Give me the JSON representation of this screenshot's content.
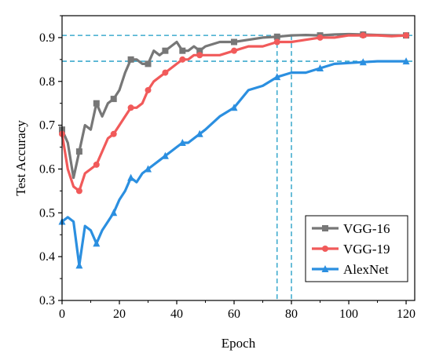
{
  "chart_data": {
    "type": "line",
    "title": "",
    "xlabel": "Epoch",
    "ylabel": "Test Accuracy",
    "xlim": [
      0,
      123
    ],
    "ylim": [
      0.3,
      0.95
    ],
    "xticks": [
      "0",
      "20",
      "40",
      "60",
      "80",
      "100",
      "120"
    ],
    "yticks": [
      "0.3",
      "0.4",
      "0.5",
      "0.6",
      "0.7",
      "0.8",
      "0.9"
    ],
    "grid": false,
    "legend_position": "bottom-right",
    "reference_lines": {
      "horizontal": [
        0.905,
        0.846
      ],
      "vertical": [
        75,
        80
      ],
      "color": "#1a9bc4"
    },
    "series": [
      {
        "name": "VGG-16",
        "color": "#777777",
        "marker": "square",
        "x": [
          0,
          2,
          4,
          6,
          8,
          10,
          12,
          14,
          16,
          18,
          20,
          22,
          24,
          26,
          28,
          30,
          32,
          34,
          36,
          38,
          40,
          42,
          44,
          46,
          48,
          50,
          55,
          60,
          65,
          70,
          75,
          80,
          85,
          90,
          95,
          100,
          105,
          110,
          115,
          120
        ],
        "y": [
          0.69,
          0.66,
          0.58,
          0.64,
          0.7,
          0.69,
          0.75,
          0.72,
          0.75,
          0.76,
          0.78,
          0.82,
          0.85,
          0.85,
          0.84,
          0.84,
          0.87,
          0.86,
          0.87,
          0.88,
          0.89,
          0.87,
          0.87,
          0.88,
          0.87,
          0.88,
          0.89,
          0.89,
          0.895,
          0.9,
          0.902,
          0.905,
          0.906,
          0.905,
          0.907,
          0.908,
          0.907,
          0.906,
          0.905,
          0.905
        ]
      },
      {
        "name": "VGG-19",
        "color": "#f15a5a",
        "marker": "circle",
        "x": [
          0,
          2,
          4,
          6,
          8,
          10,
          12,
          14,
          16,
          18,
          20,
          22,
          24,
          26,
          28,
          30,
          32,
          34,
          36,
          38,
          40,
          42,
          44,
          46,
          48,
          50,
          55,
          60,
          65,
          70,
          75,
          80,
          85,
          90,
          95,
          100,
          105,
          110,
          115,
          120
        ],
        "y": [
          0.68,
          0.6,
          0.56,
          0.55,
          0.59,
          0.6,
          0.61,
          0.64,
          0.67,
          0.68,
          0.7,
          0.72,
          0.74,
          0.74,
          0.75,
          0.78,
          0.8,
          0.81,
          0.82,
          0.83,
          0.84,
          0.85,
          0.85,
          0.86,
          0.86,
          0.86,
          0.86,
          0.87,
          0.88,
          0.88,
          0.89,
          0.89,
          0.895,
          0.9,
          0.9,
          0.905,
          0.905,
          0.905,
          0.903,
          0.905
        ]
      },
      {
        "name": "AlexNet",
        "color": "#2b8fe0",
        "marker": "triangle",
        "x": [
          0,
          2,
          4,
          6,
          8,
          10,
          12,
          14,
          16,
          18,
          20,
          22,
          24,
          26,
          28,
          30,
          32,
          34,
          36,
          38,
          40,
          42,
          44,
          46,
          48,
          50,
          55,
          60,
          65,
          70,
          75,
          80,
          85,
          90,
          95,
          100,
          105,
          110,
          115,
          120
        ],
        "y": [
          0.48,
          0.49,
          0.48,
          0.38,
          0.47,
          0.46,
          0.43,
          0.46,
          0.48,
          0.5,
          0.53,
          0.55,
          0.58,
          0.57,
          0.59,
          0.6,
          0.61,
          0.62,
          0.63,
          0.64,
          0.65,
          0.66,
          0.66,
          0.67,
          0.68,
          0.69,
          0.72,
          0.74,
          0.78,
          0.79,
          0.81,
          0.82,
          0.82,
          0.83,
          0.84,
          0.842,
          0.844,
          0.846,
          0.846,
          0.846
        ]
      }
    ]
  }
}
